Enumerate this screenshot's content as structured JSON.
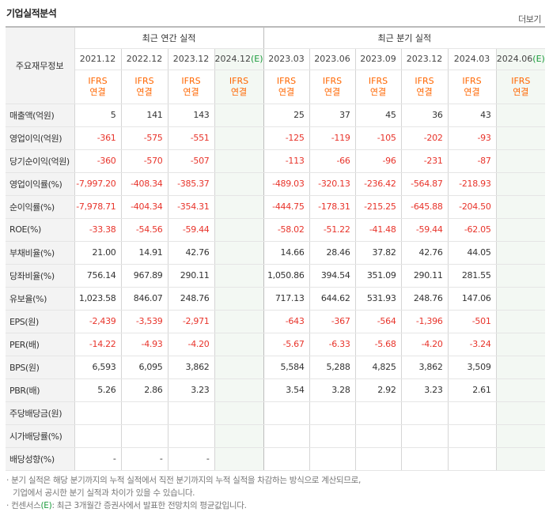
{
  "header": {
    "title": "기업실적분석",
    "more_label": "더보기"
  },
  "table": {
    "row_header_label": "주요재무정보",
    "annual_group_label": "최근 연간 실적",
    "quarter_group_label": "최근 분기 실적",
    "annual_periods": [
      "2021.12",
      "2022.12",
      "2023.12",
      "2024.12"
    ],
    "quarter_periods": [
      "2023.03",
      "2023.06",
      "2023.09",
      "2023.12",
      "2024.03",
      "2024.06"
    ],
    "estimate_marker": "(E)",
    "ifrs_label": "IFRS",
    "consolidated_label": "연결",
    "rows": [
      {
        "label": "매출액(억원)",
        "values": [
          "5",
          "141",
          "143",
          "",
          "25",
          "37",
          "45",
          "36",
          "43",
          ""
        ]
      },
      {
        "label": "영업이익(억원)",
        "values": [
          "-361",
          "-575",
          "-551",
          "",
          "-125",
          "-119",
          "-105",
          "-202",
          "-93",
          ""
        ]
      },
      {
        "label": "당기순이익(억원)",
        "values": [
          "-360",
          "-570",
          "-507",
          "",
          "-113",
          "-66",
          "-96",
          "-231",
          "-87",
          ""
        ]
      },
      {
        "label": "영업이익률(%)",
        "values": [
          "-7,997.20",
          "-408.34",
          "-385.37",
          "",
          "-489.03",
          "-320.13",
          "-236.42",
          "-564.87",
          "-218.93",
          ""
        ]
      },
      {
        "label": "순이익률(%)",
        "values": [
          "-7,978.71",
          "-404.34",
          "-354.31",
          "",
          "-444.75",
          "-178.31",
          "-215.25",
          "-645.88",
          "-204.50",
          ""
        ]
      },
      {
        "label": "ROE(%)",
        "values": [
          "-33.38",
          "-54.56",
          "-59.44",
          "",
          "-58.02",
          "-51.22",
          "-41.48",
          "-59.44",
          "-62.05",
          ""
        ]
      },
      {
        "label": "부채비율(%)",
        "values": [
          "21.00",
          "14.91",
          "42.76",
          "",
          "14.66",
          "28.46",
          "37.82",
          "42.76",
          "44.05",
          ""
        ]
      },
      {
        "label": "당좌비율(%)",
        "values": [
          "756.14",
          "967.89",
          "290.11",
          "",
          "1,050.86",
          "394.54",
          "351.09",
          "290.11",
          "281.55",
          ""
        ]
      },
      {
        "label": "유보율(%)",
        "values": [
          "1,023.58",
          "846.07",
          "248.76",
          "",
          "717.13",
          "644.62",
          "531.93",
          "248.76",
          "147.06",
          ""
        ]
      },
      {
        "label": "EPS(원)",
        "values": [
          "-2,439",
          "-3,539",
          "-2,971",
          "",
          "-643",
          "-367",
          "-564",
          "-1,396",
          "-501",
          ""
        ]
      },
      {
        "label": "PER(배)",
        "values": [
          "-14.22",
          "-4.93",
          "-4.20",
          "",
          "-5.67",
          "-6.33",
          "-5.68",
          "-4.20",
          "-3.24",
          ""
        ]
      },
      {
        "label": "BPS(원)",
        "values": [
          "6,593",
          "6,095",
          "3,862",
          "",
          "5,584",
          "5,288",
          "4,825",
          "3,862",
          "3,509",
          ""
        ]
      },
      {
        "label": "PBR(배)",
        "values": [
          "5.26",
          "2.86",
          "3.23",
          "",
          "3.54",
          "3.28",
          "2.92",
          "3.23",
          "2.61",
          ""
        ]
      },
      {
        "label": "주당배당금(원)",
        "values": [
          "",
          "",
          "",
          "",
          "",
          "",
          "",
          "",
          "",
          ""
        ]
      },
      {
        "label": "시가배당률(%)",
        "values": [
          "",
          "",
          "",
          "",
          "",
          "",
          "",
          "",
          "",
          ""
        ]
      },
      {
        "label": "배당성향(%)",
        "values": [
          "-",
          "-",
          "-",
          "",
          "",
          "",
          "",
          "",
          "",
          ""
        ]
      }
    ]
  },
  "notes": {
    "line1": "· 분기 실적은 해당 분기까지의 누적 실적에서 직전 분기까지의 누적 실적을 차감하는 방식으로 계산되므로,",
    "line2": "기업에서 공시한 분기 실적과 차이가 있을 수 있습니다.",
    "line3_prefix": "· 컨센서스",
    "line3_marker": "(E)",
    "line3_suffix": ": 최근 3개월간 증권사에서 발표한 전망치의 평균값입니다."
  },
  "colors": {
    "negative": "#e8342b",
    "ifrs": "#ff6600",
    "estimate": "#1a9b3b"
  }
}
